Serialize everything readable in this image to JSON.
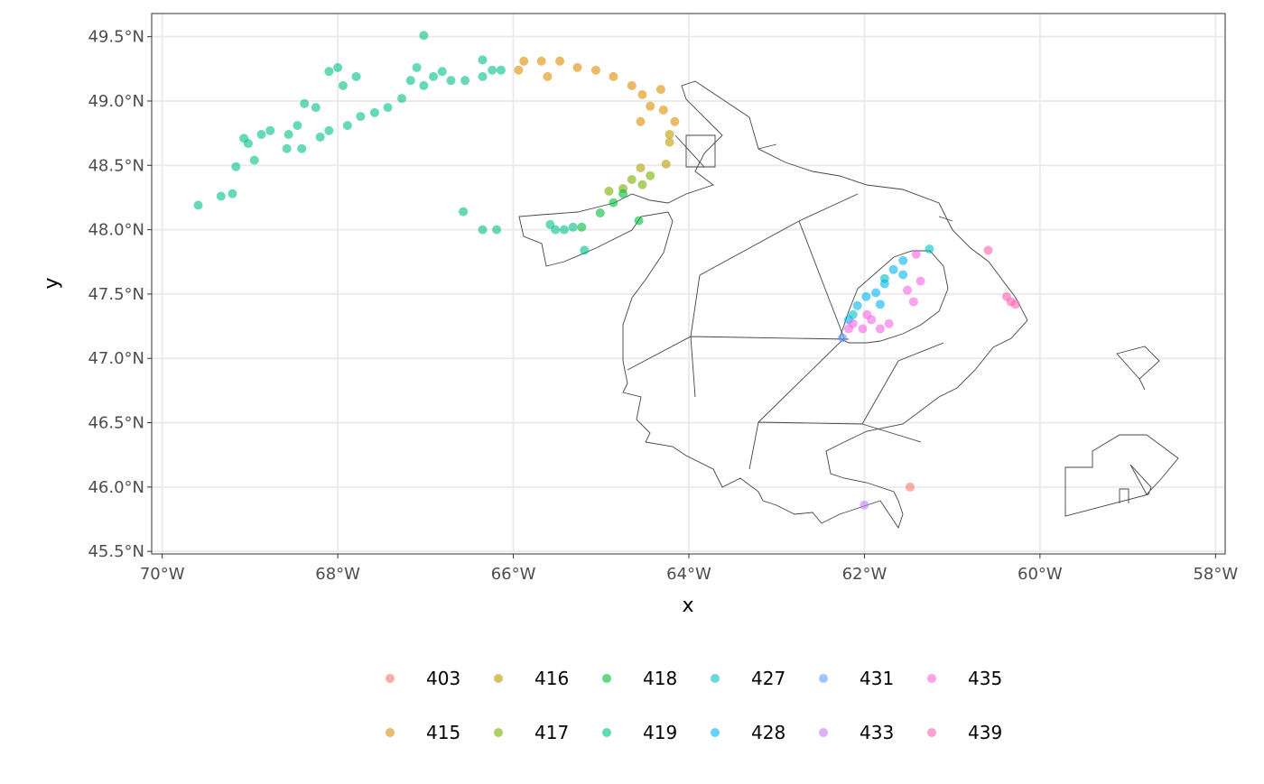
{
  "chart_data": {
    "type": "scatter",
    "title": "",
    "xlabel": "x",
    "ylabel": "y",
    "xlim": [
      -70.12,
      -57.89
    ],
    "ylim": [
      45.48,
      49.68
    ],
    "grid": true,
    "legend_position": "bottom",
    "x_ticks": [
      {
        "value": -70,
        "label": "70°W"
      },
      {
        "value": -68,
        "label": "68°W"
      },
      {
        "value": -66,
        "label": "66°W"
      },
      {
        "value": -64,
        "label": "64°W"
      },
      {
        "value": -62,
        "label": "62°W"
      },
      {
        "value": -60,
        "label": "60°W"
      },
      {
        "value": -58,
        "label": "58°W"
      }
    ],
    "y_ticks": [
      {
        "value": 45.5,
        "label": "45.5°N"
      },
      {
        "value": 46.0,
        "label": "46.0°N"
      },
      {
        "value": 46.5,
        "label": "46.5°N"
      },
      {
        "value": 47.0,
        "label": "47.0°N"
      },
      {
        "value": 47.5,
        "label": "47.5°N"
      },
      {
        "value": 48.0,
        "label": "48.0°N"
      },
      {
        "value": 48.5,
        "label": "48.5°N"
      },
      {
        "value": 49.0,
        "label": "49.0°N"
      },
      {
        "value": 49.5,
        "label": "49.5°N"
      }
    ],
    "series": [
      {
        "name": "403",
        "color": "#F8766D",
        "points": [
          [
            -61.48,
            46.0
          ]
        ]
      },
      {
        "name": "415",
        "color": "#DE8C00",
        "points": [
          [
            -65.88,
            49.31
          ],
          [
            -65.94,
            49.24
          ],
          [
            -65.68,
            49.31
          ],
          [
            -65.47,
            49.31
          ],
          [
            -65.61,
            49.19
          ],
          [
            -65.27,
            49.26
          ],
          [
            -65.06,
            49.24
          ],
          [
            -64.86,
            49.19
          ],
          [
            -64.65,
            49.12
          ],
          [
            -64.53,
            49.05
          ],
          [
            -64.32,
            49.09
          ],
          [
            -64.44,
            48.96
          ],
          [
            -64.29,
            48.93
          ],
          [
            -64.16,
            48.84
          ],
          [
            -64.55,
            48.84
          ]
        ]
      },
      {
        "name": "416",
        "color": "#B79F00",
        "points": [
          [
            -64.22,
            48.74
          ],
          [
            -64.22,
            48.68
          ],
          [
            -64.55,
            48.48
          ],
          [
            -64.26,
            48.51
          ]
        ]
      },
      {
        "name": "417",
        "color": "#7CAE00",
        "points": [
          [
            -64.65,
            48.39
          ],
          [
            -64.44,
            48.42
          ],
          [
            -64.75,
            48.32
          ],
          [
            -64.91,
            48.3
          ],
          [
            -64.53,
            48.35
          ]
        ]
      },
      {
        "name": "418",
        "color": "#00BA38",
        "points": [
          [
            -65.01,
            48.13
          ],
          [
            -65.22,
            48.02
          ],
          [
            -64.57,
            48.07
          ],
          [
            -64.75,
            48.28
          ],
          [
            -64.86,
            48.21
          ]
        ]
      },
      {
        "name": "419",
        "color": "#00C08B",
        "points": [
          [
            -69.59,
            48.19
          ],
          [
            -69.33,
            48.26
          ],
          [
            -69.2,
            48.28
          ],
          [
            -69.16,
            48.49
          ],
          [
            -68.95,
            48.54
          ],
          [
            -69.02,
            48.67
          ],
          [
            -68.87,
            48.74
          ],
          [
            -68.77,
            48.77
          ],
          [
            -68.56,
            48.74
          ],
          [
            -68.46,
            48.81
          ],
          [
            -68.58,
            48.63
          ],
          [
            -68.41,
            48.63
          ],
          [
            -68.25,
            48.95
          ],
          [
            -68.2,
            48.72
          ],
          [
            -68.1,
            48.77
          ],
          [
            -68.1,
            49.23
          ],
          [
            -68.0,
            49.26
          ],
          [
            -67.94,
            49.12
          ],
          [
            -67.79,
            49.19
          ],
          [
            -67.89,
            48.81
          ],
          [
            -67.74,
            48.88
          ],
          [
            -67.58,
            48.91
          ],
          [
            -67.43,
            48.95
          ],
          [
            -67.27,
            49.02
          ],
          [
            -67.17,
            49.16
          ],
          [
            -67.1,
            49.26
          ],
          [
            -67.02,
            49.51
          ],
          [
            -67.02,
            49.12
          ],
          [
            -66.91,
            49.19
          ],
          [
            -66.81,
            49.23
          ],
          [
            -66.71,
            49.16
          ],
          [
            -66.55,
            49.16
          ],
          [
            -66.35,
            49.19
          ],
          [
            -66.24,
            49.24
          ],
          [
            -66.14,
            49.24
          ],
          [
            -66.35,
            49.32
          ],
          [
            -66.57,
            48.14
          ],
          [
            -66.35,
            48.0
          ],
          [
            -66.19,
            48.0
          ],
          [
            -65.58,
            48.04
          ],
          [
            -65.42,
            48.0
          ],
          [
            -65.52,
            48.0
          ],
          [
            -65.32,
            48.02
          ],
          [
            -65.19,
            47.84
          ],
          [
            -68.38,
            48.98
          ],
          [
            -69.07,
            48.71
          ]
        ]
      },
      {
        "name": "427",
        "color": "#00BFC4",
        "points": [
          [
            -61.26,
            47.85
          ],
          [
            -61.77,
            47.62
          ],
          [
            -62.13,
            47.34
          ]
        ]
      },
      {
        "name": "428",
        "color": "#00B4F0",
        "points": [
          [
            -62.18,
            47.3
          ],
          [
            -62.08,
            47.41
          ],
          [
            -61.98,
            47.48
          ],
          [
            -61.87,
            47.51
          ],
          [
            -61.77,
            47.58
          ],
          [
            -61.67,
            47.69
          ],
          [
            -61.56,
            47.76
          ],
          [
            -61.82,
            47.42
          ],
          [
            -61.56,
            47.65
          ]
        ]
      },
      {
        "name": "431",
        "color": "#619CFF",
        "points": [
          [
            -62.25,
            47.16
          ]
        ]
      },
      {
        "name": "433",
        "color": "#C77CFF",
        "points": [
          [
            -62.0,
            45.86
          ]
        ]
      },
      {
        "name": "435",
        "color": "#F564E3",
        "points": [
          [
            -62.13,
            47.27
          ],
          [
            -62.02,
            47.23
          ],
          [
            -61.92,
            47.3
          ],
          [
            -61.82,
            47.23
          ],
          [
            -61.97,
            47.34
          ],
          [
            -61.72,
            47.27
          ],
          [
            -61.41,
            47.81
          ],
          [
            -61.36,
            47.6
          ],
          [
            -61.51,
            47.53
          ],
          [
            -61.44,
            47.44
          ],
          [
            -62.18,
            47.23
          ]
        ]
      },
      {
        "name": "439",
        "color": "#FF64B0",
        "points": [
          [
            -60.59,
            47.84
          ],
          [
            -60.38,
            47.48
          ],
          [
            -60.33,
            47.44
          ],
          [
            -60.28,
            47.42
          ]
        ]
      }
    ]
  }
}
